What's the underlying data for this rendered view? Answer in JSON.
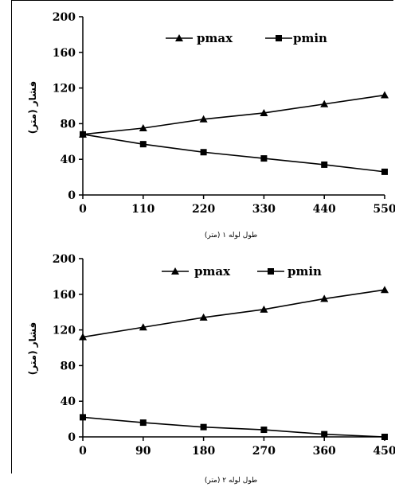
{
  "chart_data": [
    {
      "type": "line",
      "x": [
        0,
        110,
        220,
        330,
        440,
        550
      ],
      "x_tick_labels": [
        "0",
        "110",
        "220",
        "330",
        "440",
        "550"
      ],
      "y_tick_labels": [
        "0",
        "40",
        "80",
        "120",
        "160",
        "200"
      ],
      "ylim": [
        0,
        200
      ],
      "xlim": [
        0,
        550
      ],
      "xlabel": "طول لوله ۱ (متر)",
      "ylabel": "فشار (متر)",
      "legend_position": "top",
      "grid": false,
      "series": [
        {
          "name": "pmax",
          "marker": "triangle",
          "values": [
            68,
            75,
            85,
            92,
            102,
            112
          ]
        },
        {
          "name": "pmin",
          "marker": "square",
          "values": [
            68,
            57,
            48,
            41,
            34,
            26
          ]
        }
      ]
    },
    {
      "type": "line",
      "x": [
        0,
        90,
        180,
        270,
        360,
        450
      ],
      "x_tick_labels": [
        "0",
        "90",
        "180",
        "270",
        "360",
        "450"
      ],
      "y_tick_labels": [
        "0",
        "40",
        "80",
        "120",
        "160",
        "200"
      ],
      "ylim": [
        0,
        200
      ],
      "xlim": [
        0,
        450
      ],
      "xlabel": "طول لوله ۲ (متر)",
      "ylabel": "فشار (متر)",
      "legend_position": "top",
      "grid": false,
      "series": [
        {
          "name": "pmax",
          "marker": "triangle",
          "values": [
            112,
            123,
            134,
            143,
            155,
            165
          ]
        },
        {
          "name": "pmin",
          "marker": "square",
          "values": [
            22,
            16,
            11,
            8,
            3,
            0
          ]
        }
      ]
    }
  ]
}
